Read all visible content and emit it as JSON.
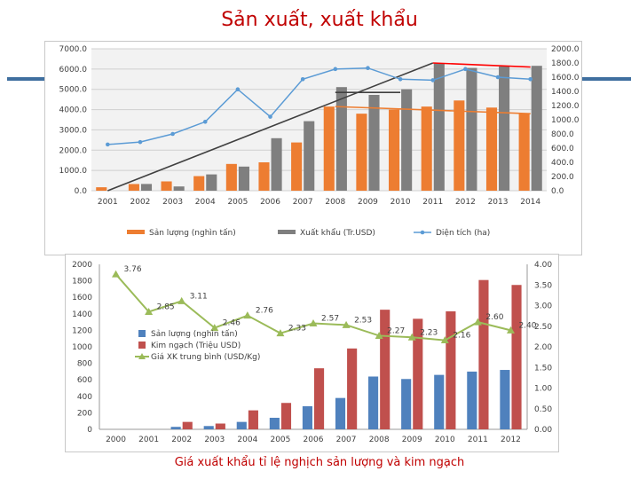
{
  "slide": {
    "title": "Sản xuất, xuất khẩu",
    "caption": "Giá xuất khẩu tỉ lệ nghịch sản lượng và kim ngạch"
  },
  "chart_data": [
    {
      "type": "bar",
      "categories": [
        "2001",
        "2002",
        "2003",
        "2004",
        "2005",
        "2006",
        "2007",
        "2008",
        "2009",
        "2010",
        "2011",
        "2012",
        "2013",
        "2014"
      ],
      "series": [
        {
          "name": "Sản lượng (nghìn tấn)",
          "kind": "bar",
          "axis": "left",
          "color": "#ed7d31",
          "values": [
            170,
            330,
            460,
            720,
            1320,
            1400,
            2380,
            4150,
            3800,
            4000,
            4150,
            4450,
            4100,
            3800
          ]
        },
        {
          "name": "Xuất khẩu (Tr.USD)",
          "kind": "bar",
          "axis": "right",
          "color": "#7f7f7f",
          "values": [
            0,
            95,
            60,
            230,
            340,
            740,
            980,
            1460,
            1350,
            1430,
            1800,
            1730,
            1750,
            1760
          ]
        },
        {
          "name": "Diện tích (ha)",
          "kind": "line",
          "axis": "left",
          "color": "#5b9bd5",
          "values": [
            2280,
            2400,
            2800,
            3400,
            5000,
            3650,
            5500,
            6000,
            6050,
            5500,
            5450,
            6000,
            5600,
            5500
          ]
        }
      ],
      "trendlines": [
        {
          "name": "production-trend",
          "color": "#ed7d31",
          "from": [
            "2008",
            4150
          ],
          "to": [
            "2014",
            3800
          ]
        },
        {
          "name": "export-trend",
          "color": "#404040",
          "from": [
            "2001",
            0
          ],
          "to": [
            "2011",
            6300
          ]
        },
        {
          "name": "plateau-line",
          "color": "#404040",
          "from": [
            "2008",
            4850
          ],
          "to": [
            "2010",
            4850
          ]
        },
        {
          "name": "peak-trend",
          "color": "#ff0000",
          "from": [
            "2011",
            6300
          ],
          "to": [
            "2014",
            6100
          ]
        }
      ],
      "y_left": {
        "ylim": [
          0,
          7000
        ],
        "ticks": [
          "0.0",
          "1000.0",
          "2000.0",
          "3000.0",
          "4000.0",
          "5000.0",
          "6000.0",
          "7000.0"
        ]
      },
      "y_right": {
        "ylim": [
          0,
          2000
        ],
        "ticks": [
          "0.0",
          "200.0",
          "400.0",
          "600.0",
          "800.0",
          "1000.0",
          "1200.0",
          "1400.0",
          "1600.0",
          "1800.0",
          "2000.0"
        ]
      },
      "grid": true,
      "legend_position": "bottom",
      "plot_background": "#f2f2f2"
    },
    {
      "type": "bar",
      "categories": [
        "2000",
        "2001",
        "2002",
        "2003",
        "2004",
        "2005",
        "2006",
        "2007",
        "2008",
        "2009",
        "2010",
        "2011",
        "2012"
      ],
      "series": [
        {
          "name": "Sản lượng (nghìn tấn)",
          "kind": "bar",
          "axis": "left",
          "color": "#4f81bd",
          "values": [
            0,
            0,
            30,
            40,
            90,
            140,
            280,
            380,
            640,
            610,
            660,
            700,
            720
          ]
        },
        {
          "name": "Kim ngạch (Triệu USD)",
          "kind": "bar",
          "axis": "left",
          "color": "#c0504d",
          "values": [
            0,
            0,
            90,
            70,
            230,
            320,
            740,
            980,
            1450,
            1340,
            1430,
            1810,
            1750
          ]
        },
        {
          "name": "Giá XK trung bình (USD/Kg)",
          "kind": "line",
          "axis": "right",
          "color": "#9bbb59",
          "values": [
            3.76,
            2.85,
            3.11,
            2.46,
            2.76,
            2.33,
            2.57,
            2.53,
            2.27,
            2.23,
            2.16,
            2.6,
            2.4
          ],
          "labels": [
            "3.76",
            "2.85",
            "3.11",
            "2.46",
            "2.76",
            "2.33",
            "2.57",
            "2.53",
            "2.27",
            "2.23",
            "2.16",
            "2.60",
            "2.40"
          ]
        }
      ],
      "y_left": {
        "ylim": [
          0,
          2000
        ],
        "ticks": [
          "0",
          "200",
          "400",
          "600",
          "800",
          "1000",
          "1200",
          "1400",
          "1600",
          "1800",
          "2000"
        ]
      },
      "y_right": {
        "ylim": [
          0,
          4
        ],
        "ticks": [
          "0.00",
          "0.50",
          "1.00",
          "1.50",
          "2.00",
          "2.50",
          "3.00",
          "3.50",
          "4.00"
        ]
      },
      "grid": false,
      "legend_position": "left-middle"
    }
  ]
}
